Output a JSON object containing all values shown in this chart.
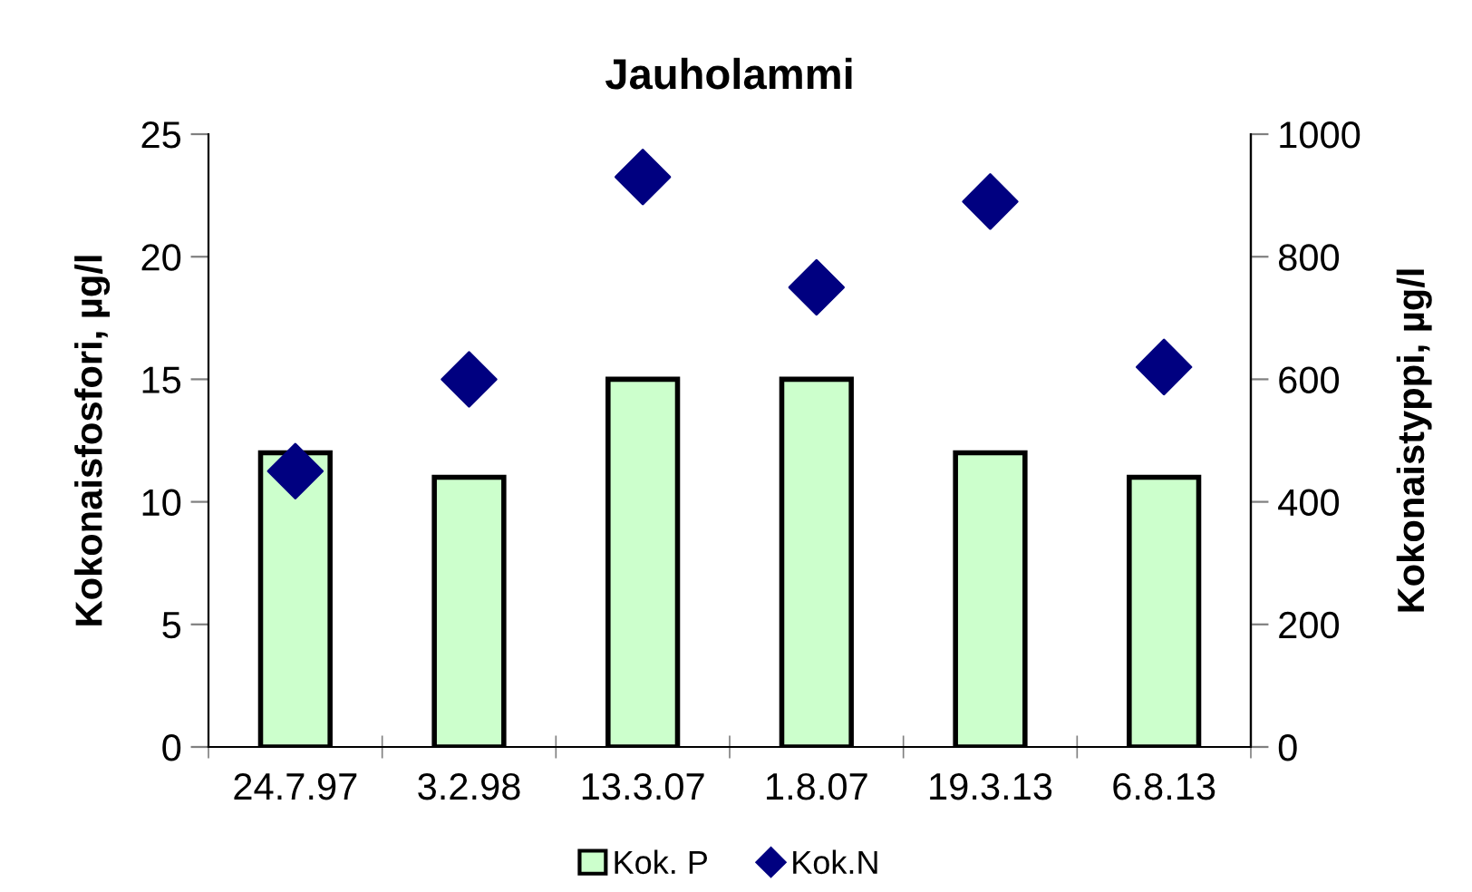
{
  "chart_data": {
    "type": "bar",
    "title": "Jauholammi",
    "ylabel": "Kokonaisfosfori, µg/l",
    "y2label": "Kokonaistyppi, µg/l",
    "categories": [
      "24.7.97",
      "3.2.98",
      "13.3.07",
      "1.8.07",
      "19.3.13",
      "6.8.13"
    ],
    "series": [
      {
        "name": "Kok. P",
        "color": "#ccffcc",
        "values": [
          12,
          11,
          15,
          15,
          12,
          11
        ]
      },
      {
        "name": "Kok.N",
        "type": "scatter",
        "axis": "y2",
        "marker": "diamond",
        "color": "#000080",
        "values": [
          450,
          600,
          930,
          750,
          890,
          620
        ]
      }
    ],
    "ylim": [
      0,
      25
    ],
    "yticks": [
      0,
      5,
      10,
      15,
      20,
      25
    ],
    "y2lim": [
      0,
      1000
    ],
    "y2ticks": [
      0,
      200,
      400,
      600,
      800,
      1000
    ],
    "grid": false,
    "legend": "bottom"
  }
}
